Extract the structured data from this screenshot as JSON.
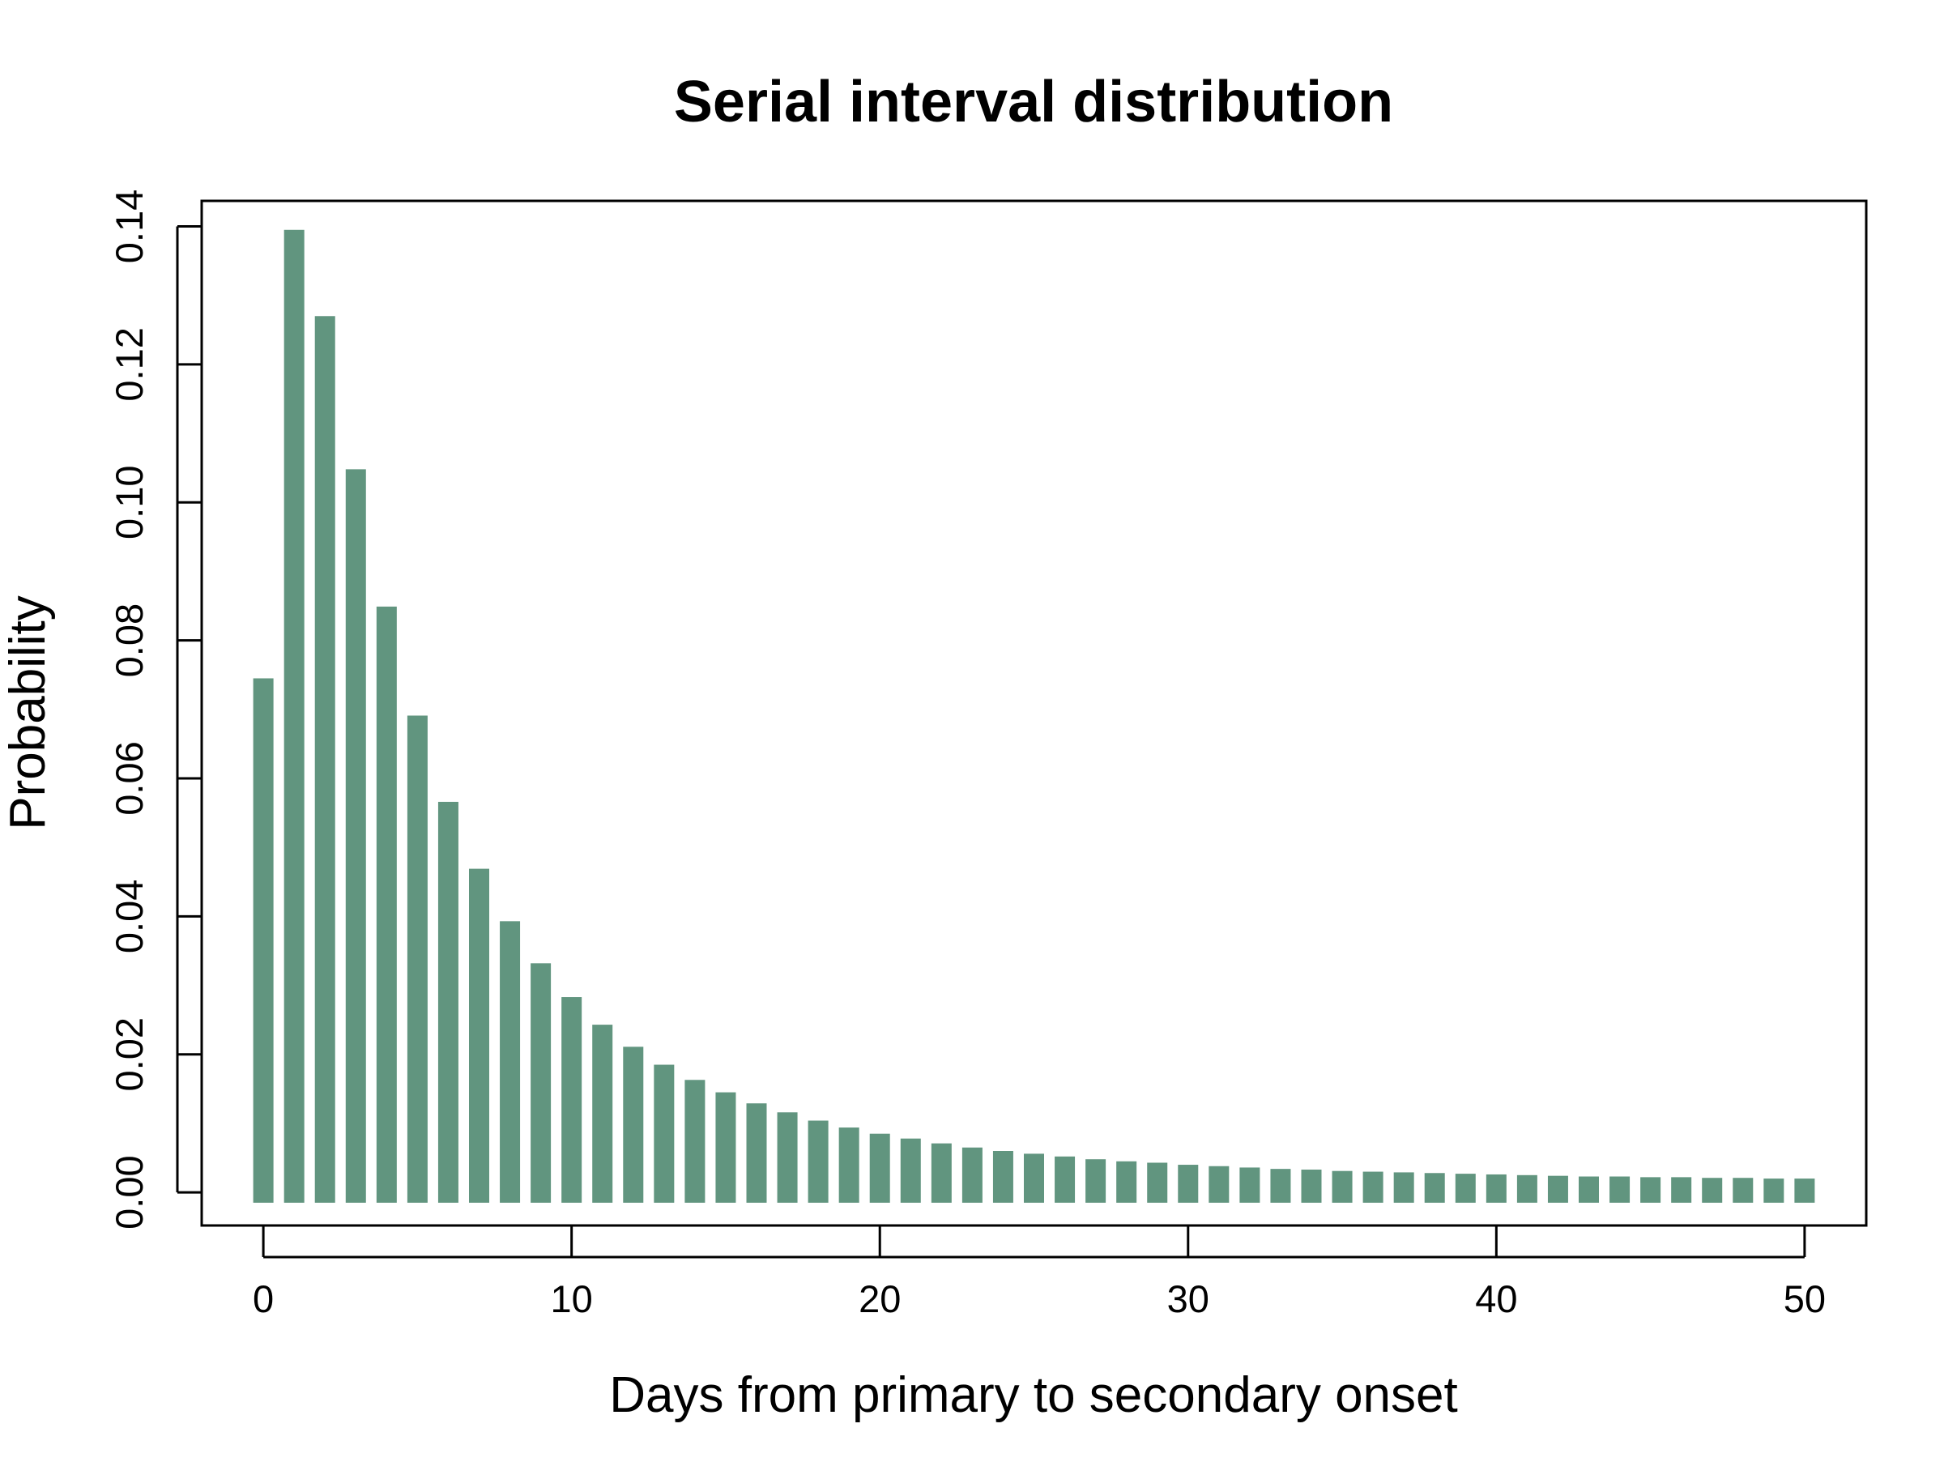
{
  "colors": {
    "bar": "#61957f",
    "axis": "#000000",
    "background": "#ffffff"
  },
  "chart_data": {
    "type": "bar",
    "title": "Serial interval distribution",
    "xlabel": "Days from primary to secondary onset",
    "ylabel": "Probability",
    "x": [
      0,
      1,
      2,
      3,
      4,
      5,
      6,
      7,
      8,
      9,
      10,
      11,
      12,
      13,
      14,
      15,
      16,
      17,
      18,
      19,
      20,
      21,
      22,
      23,
      24,
      25,
      26,
      27,
      28,
      29,
      30,
      31,
      32,
      33,
      34,
      35,
      36,
      37,
      38,
      39,
      40,
      41,
      42,
      43,
      44,
      45,
      46,
      47,
      48,
      49,
      50
    ],
    "values": [
      0.0745,
      0.1395,
      0.127,
      0.1048,
      0.0849,
      0.0691,
      0.0566,
      0.0469,
      0.0393,
      0.0332,
      0.0283,
      0.0243,
      0.0211,
      0.0185,
      0.0163,
      0.0145,
      0.0129,
      0.0116,
      0.0104,
      0.0094,
      0.0085,
      0.0078,
      0.0071,
      0.0065,
      0.006,
      0.0056,
      0.0052,
      0.0048,
      0.0045,
      0.0043,
      0.004,
      0.0038,
      0.0036,
      0.0034,
      0.0033,
      0.0031,
      0.003,
      0.0029,
      0.0028,
      0.0027,
      0.0026,
      0.0025,
      0.0024,
      0.0023,
      0.0023,
      0.0022,
      0.0022,
      0.0021,
      0.0021,
      0.002,
      0.002
    ],
    "baseline": -0.0015,
    "xlim": [
      -2,
      52
    ],
    "ylim": [
      -0.0048,
      0.1437
    ],
    "xticks": [
      "0",
      "10",
      "20",
      "30",
      "40",
      "50"
    ],
    "yticks": [
      "0.00",
      "0.02",
      "0.04",
      "0.06",
      "0.08",
      "0.10",
      "0.12",
      "0.14"
    ],
    "grid": false,
    "legend": "none"
  }
}
